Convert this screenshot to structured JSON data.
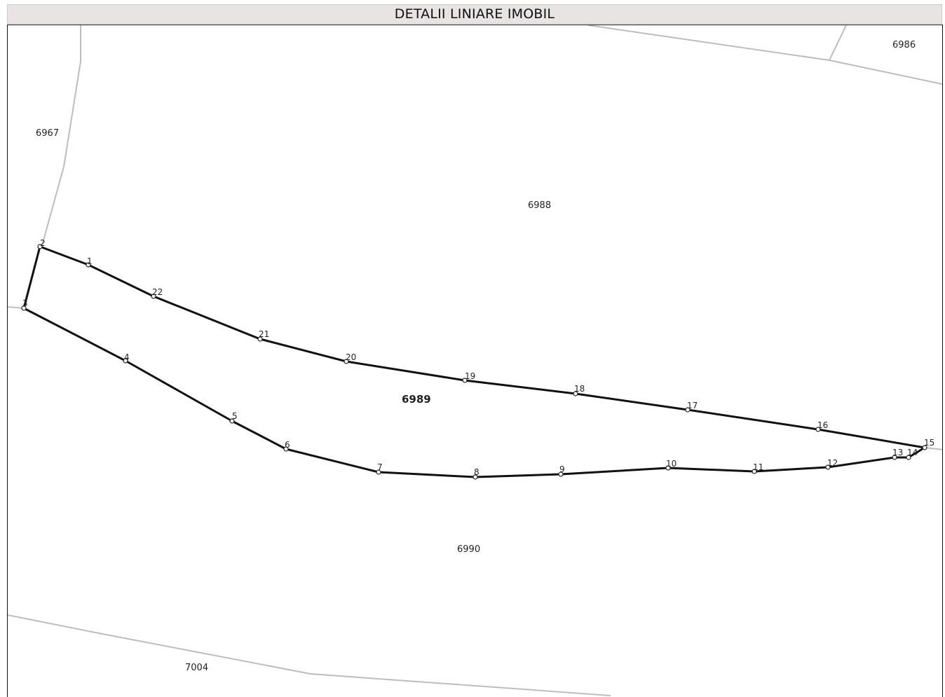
{
  "title": "DETALII LINIARE IMOBIL",
  "parcels": {
    "main": "6989",
    "neighbors": [
      "6967",
      "6986",
      "6988",
      "6990",
      "7004"
    ]
  },
  "vertices": [
    "1",
    "2",
    "3",
    "4",
    "5",
    "6",
    "7",
    "8",
    "9",
    "10",
    "11",
    "12",
    "13",
    "14",
    "15",
    "16",
    "17",
    "18",
    "19",
    "20",
    "21",
    "22"
  ],
  "colors": {
    "title_bg": "#e8e4e4",
    "parcel_line": "#111111",
    "neighbor_line": "#bdbdbd"
  }
}
